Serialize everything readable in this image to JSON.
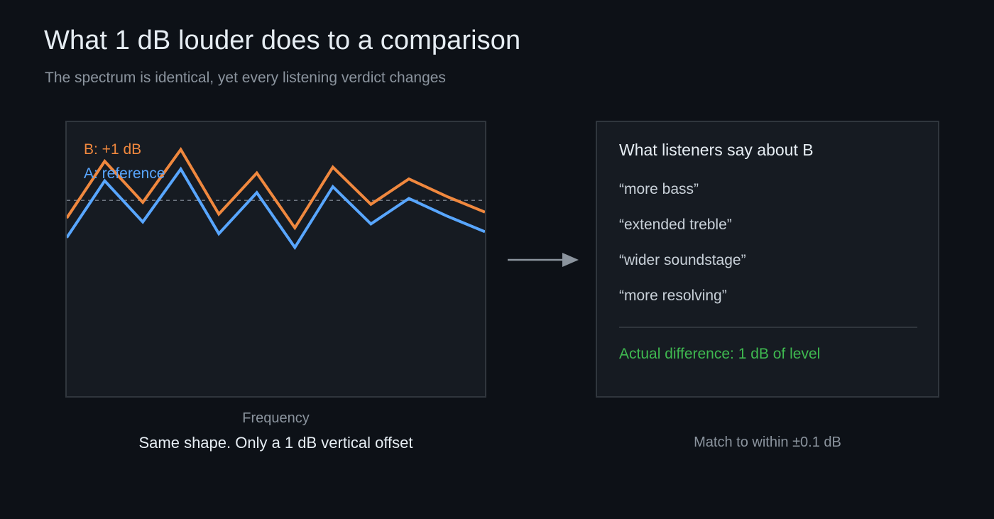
{
  "header": {
    "title": "What 1 dB louder does to a comparison",
    "subtitle": "The spectrum is identical, yet every listening verdict changes"
  },
  "chart": {
    "legend_b": "B: +1 dB",
    "legend_a": "A: reference",
    "xlabel": "Frequency",
    "caption": "Same shape. Only a 1 dB vertical offset",
    "colors": {
      "b": "#f0883e",
      "a": "#58a6ff",
      "reference_line": "#6e7681"
    }
  },
  "chart_data": {
    "type": "line",
    "xlabel": "Frequency",
    "ylabel": "",
    "x": [
      0,
      1,
      2,
      3,
      4,
      5,
      6,
      7,
      8,
      9,
      10,
      11
    ],
    "series": [
      {
        "name": "B: +1 dB",
        "values": [
          -0.9,
          2.0,
          -0.1,
          2.6,
          -0.7,
          1.4,
          -1.4,
          1.7,
          -0.2,
          1.1,
          0.2,
          -0.6
        ]
      },
      {
        "name": "A: reference",
        "values": [
          -1.9,
          1.0,
          -1.1,
          1.6,
          -1.7,
          0.4,
          -2.4,
          0.7,
          -1.2,
          0.1,
          -0.8,
          -1.6
        ]
      }
    ],
    "ylim": [
      -10,
      4
    ],
    "reference_level": 0,
    "grid": false,
    "legend": "top-left"
  },
  "verdicts": {
    "title": "What listeners say about B",
    "quotes": [
      "“more bass”",
      "“extended treble”",
      "“wider soundstage”",
      "“more resolving”"
    ],
    "actual": "Actual difference: 1 dB of level",
    "actual_color": "#3fb950",
    "caption": "Match to within ±0.1 dB"
  }
}
